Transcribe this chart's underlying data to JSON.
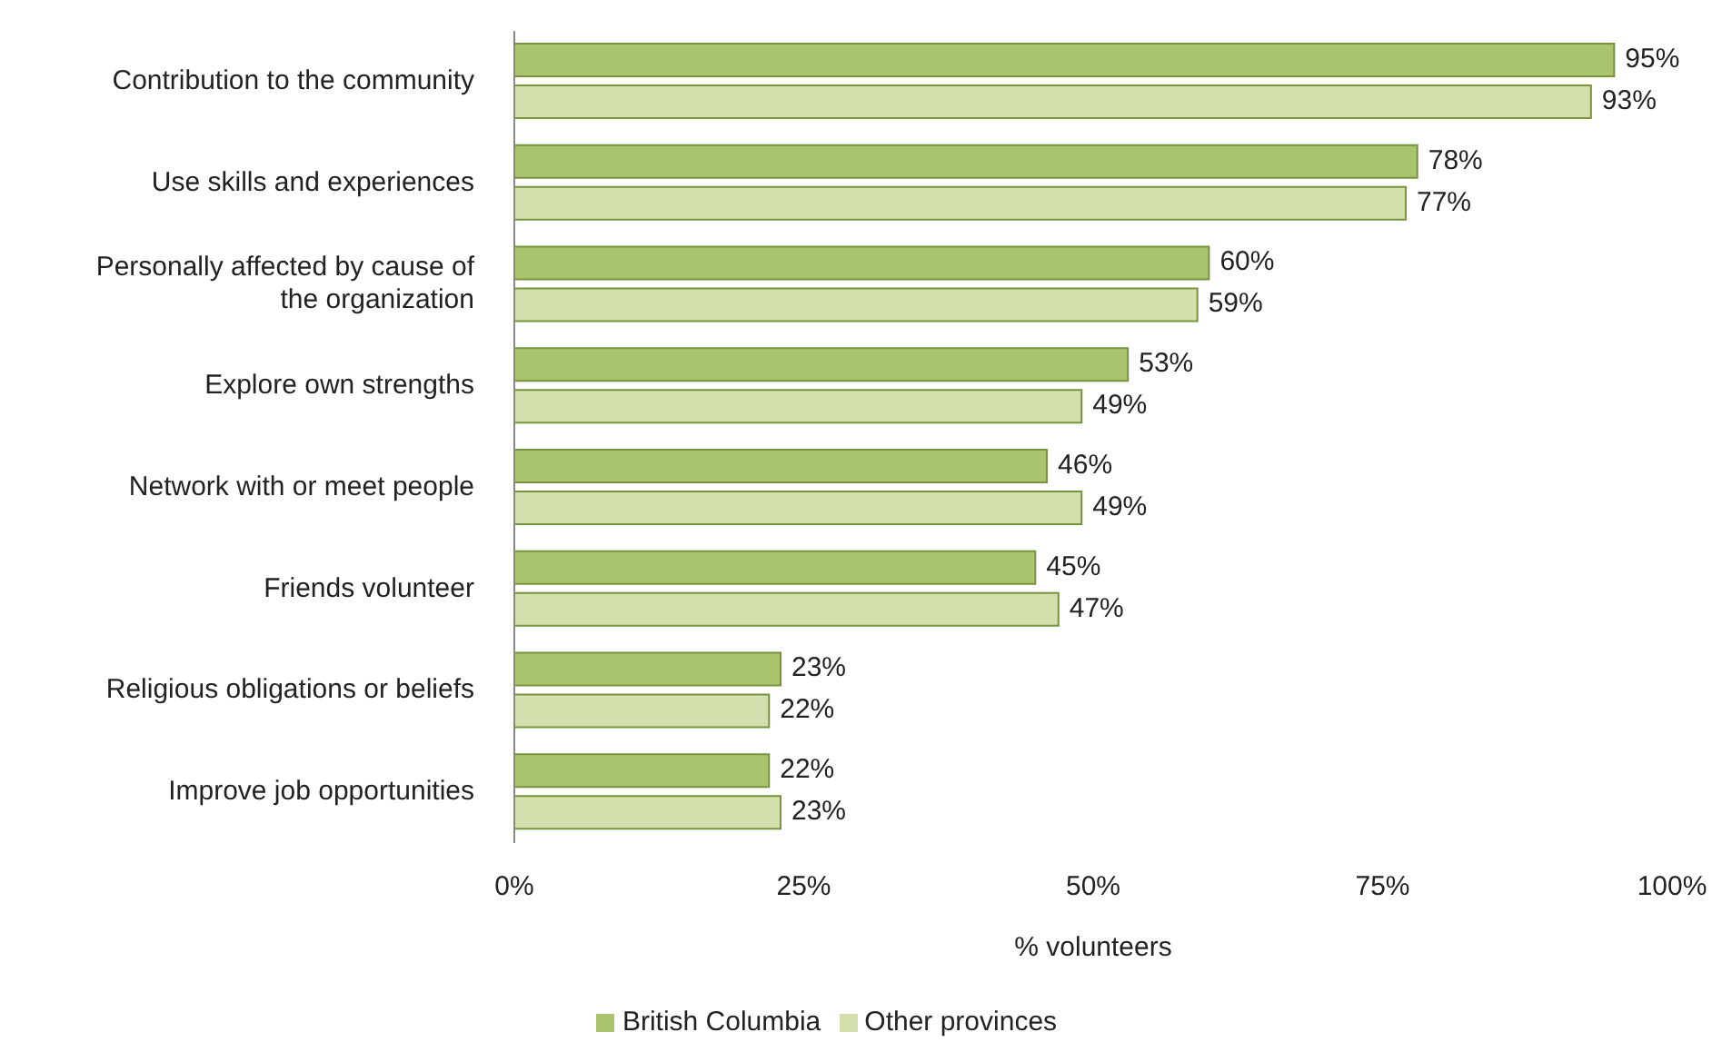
{
  "chart_data": {
    "type": "bar",
    "orientation": "horizontal",
    "xlabel": "% volunteers",
    "categories": [
      "Contribution to the community",
      "Use skills and experiences",
      "Personally affected by cause of the organization",
      "Explore own strengths",
      "Network with or meet people",
      "Friends volunteer",
      "Religious obligations or beliefs",
      "Improve job opportunities"
    ],
    "series": [
      {
        "name": "British Columbia",
        "color": "#a9c46c",
        "values": [
          95,
          78,
          60,
          53,
          46,
          45,
          23,
          22
        ],
        "value_labels": [
          "95%",
          "78%",
          "60%",
          "53%",
          "46%",
          "45%",
          "23%",
          "22%"
        ]
      },
      {
        "name": "Other provinces",
        "color": "#d3e0ad",
        "values": [
          93,
          77,
          59,
          49,
          49,
          47,
          22,
          23
        ],
        "value_labels": [
          "93%",
          "77%",
          "59%",
          "49%",
          "49%",
          "47%",
          "22%",
          "23%"
        ]
      }
    ],
    "xlim": [
      0,
      100
    ],
    "xticks": [
      {
        "value": 0,
        "label": "0%"
      },
      {
        "value": 25,
        "label": "25%"
      },
      {
        "value": 50,
        "label": "50%"
      },
      {
        "value": 75,
        "label": "75%"
      },
      {
        "value": 100,
        "label": "100%"
      }
    ],
    "grid": false,
    "legend": "bottom"
  }
}
